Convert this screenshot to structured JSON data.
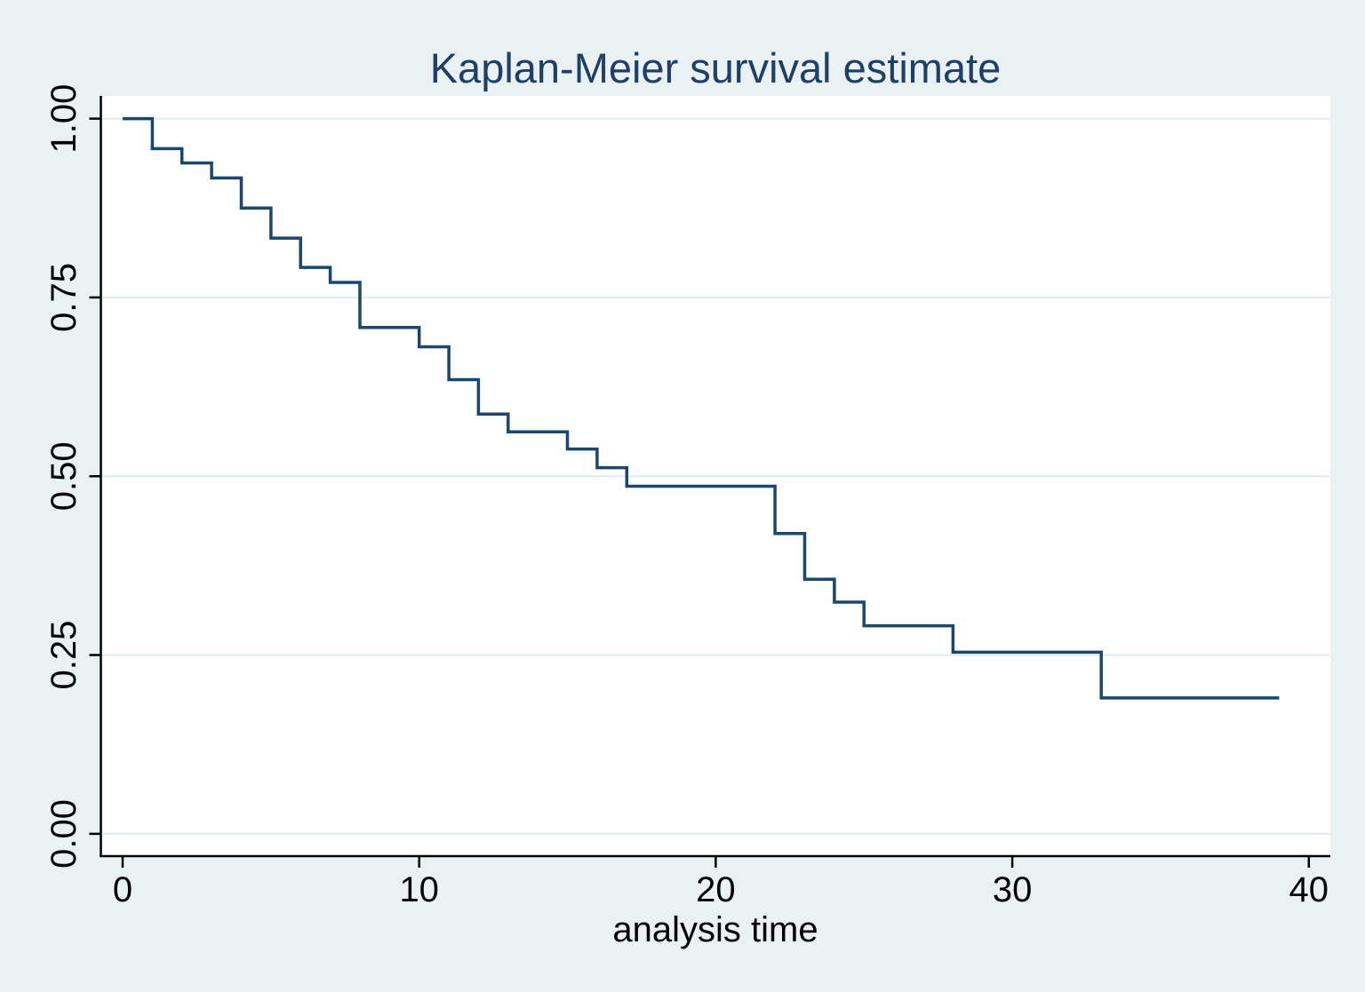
{
  "figure": {
    "title": "Kaplan-Meier survival estimate",
    "x_axis": {
      "label": "analysis time",
      "tick_labels": [
        "0",
        "10",
        "20",
        "30",
        "40"
      ],
      "tick_values": [
        0,
        10,
        20,
        30,
        40
      ]
    },
    "y_axis": {
      "label": "",
      "tick_labels": [
        "0.00",
        "0.25",
        "0.50",
        "0.75",
        "1.00"
      ],
      "tick_values": [
        0,
        0.25,
        0.5,
        0.75,
        1
      ]
    }
  },
  "colors": {
    "background": "#eaf1f3",
    "plot_background": "#ffffff",
    "gridline": "#dfebee",
    "axis": "#000000",
    "tick_text": "#000000",
    "curve": "#1a476f",
    "title_text": "#1e3f66"
  },
  "chart_data": {
    "type": "line",
    "subtype": "kaplan-meier-step",
    "title": "Kaplan-Meier survival estimate",
    "xlabel": "analysis time",
    "ylabel": "",
    "xlim": [
      0,
      40
    ],
    "ylim": [
      0,
      1
    ],
    "x_ticks": [
      0,
      10,
      20,
      30,
      40
    ],
    "y_ticks": [
      0,
      0.25,
      0.5,
      0.75,
      1
    ],
    "grid": true,
    "legend": false,
    "series": [
      {
        "name": "survival estimate",
        "steps_time_survival": [
          [
            0,
            1.0
          ],
          [
            1,
            0.958
          ],
          [
            2,
            0.938
          ],
          [
            3,
            0.917
          ],
          [
            4,
            0.875
          ],
          [
            5,
            0.833
          ],
          [
            6,
            0.792
          ],
          [
            7,
            0.771
          ],
          [
            8,
            0.708
          ],
          [
            10,
            0.681
          ],
          [
            11,
            0.635
          ],
          [
            12,
            0.587
          ],
          [
            13,
            0.562
          ],
          [
            15,
            0.538
          ],
          [
            16,
            0.512
          ],
          [
            17,
            0.486
          ],
          [
            22,
            0.42
          ],
          [
            23,
            0.356
          ],
          [
            24,
            0.324
          ],
          [
            25,
            0.291
          ],
          [
            28,
            0.254
          ],
          [
            33,
            0.19
          ]
        ],
        "end_time": 39
      }
    ]
  }
}
